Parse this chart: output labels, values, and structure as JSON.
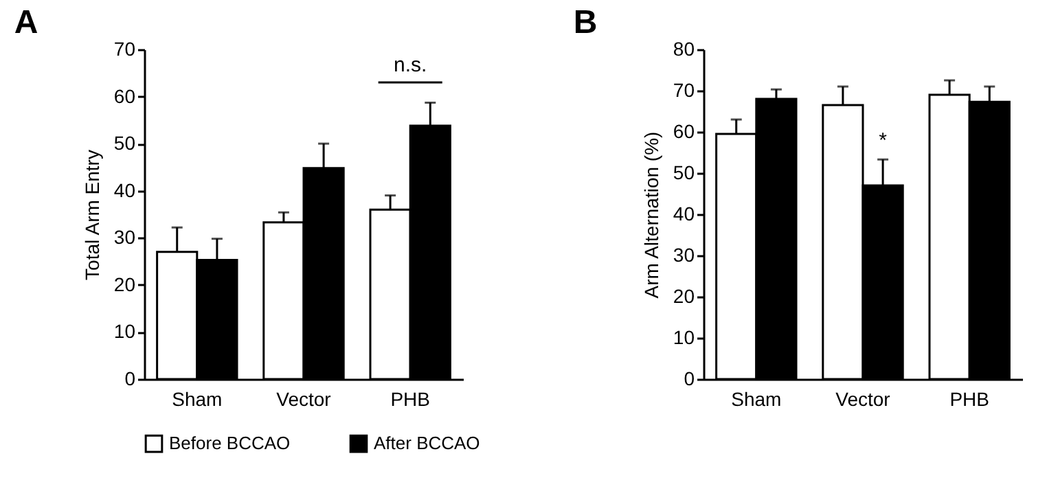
{
  "chart_data": [
    {
      "type": "bar",
      "title": "A",
      "ylabel": "Total Arm Entry",
      "categories": [
        "Sham",
        "Vector",
        "PHB"
      ],
      "ylim": [
        0,
        70
      ],
      "yticks": [
        0,
        10,
        20,
        30,
        40,
        50,
        60,
        70
      ],
      "legend": "bottom",
      "grid": false,
      "series": [
        {
          "name": "Before BCCAO",
          "color": "#ffffff",
          "values": [
            27,
            33.3,
            36
          ],
          "errors": [
            5.2,
            2.1,
            3
          ]
        },
        {
          "name": "After BCCAO",
          "color": "#000000",
          "values": [
            25.3,
            44.8,
            53.8
          ],
          "errors": [
            4.5,
            5.2,
            4.9
          ]
        }
      ],
      "annotations": [
        "n.s."
      ]
    },
    {
      "type": "bar",
      "title": "B",
      "ylabel": "Arm Alternation (%)",
      "categories": [
        "Sham",
        "Vector",
        "PHB"
      ],
      "ylim": [
        0,
        80
      ],
      "yticks": [
        0,
        10,
        20,
        30,
        40,
        50,
        60,
        70,
        80
      ],
      "legend": "bottom",
      "grid": false,
      "series": [
        {
          "name": "Before BCCAO",
          "color": "#ffffff",
          "values": [
            59.5,
            66.5,
            69
          ],
          "errors": [
            3.5,
            4.5,
            3.5
          ]
        },
        {
          "name": "After BCCAO",
          "color": "#000000",
          "values": [
            68,
            47,
            67.3
          ],
          "errors": [
            2.3,
            6.3,
            3.7
          ]
        }
      ],
      "annotations": [
        {
          "text": "*",
          "x": "Vector",
          "y": 53.3
        }
      ]
    }
  ]
}
